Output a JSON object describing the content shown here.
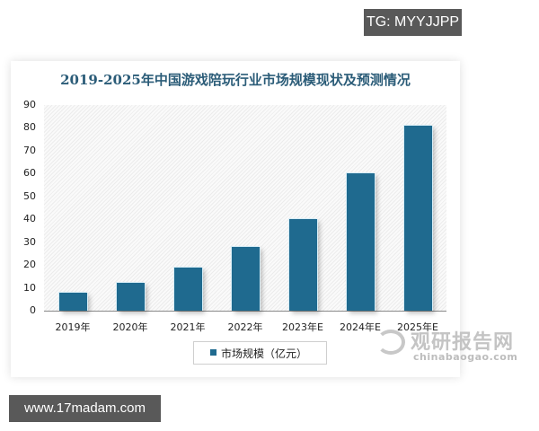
{
  "overlay": {
    "tg_badge": "TG: MYYJJPP",
    "url_badge": "www.17madam.com"
  },
  "chart": {
    "title": "2019-2025年中国游戏陪玩行业市场规模现状及预测情况",
    "legend": "市场规模（亿元）",
    "bar_color": "#1f6a8f",
    "y_ticks": [
      "90",
      "80",
      "70",
      "60",
      "50",
      "40",
      "30",
      "20",
      "10",
      "0"
    ],
    "x_ticks": [
      "2019年",
      "2020年",
      "2021年",
      "2022年",
      "2023年E",
      "2024年E",
      "2025年E"
    ]
  },
  "watermark": {
    "cn": "观研报告网",
    "en": "chinabaogao.com"
  },
  "chart_data": {
    "type": "bar",
    "title": "2019-2025年中国游戏陪玩行业市场规模现状及预测情况",
    "categories": [
      "2019年",
      "2020年",
      "2021年",
      "2022年",
      "2023年E",
      "2024年E",
      "2025年E"
    ],
    "series": [
      {
        "name": "市场规模（亿元）",
        "values": [
          8,
          12,
          19,
          28,
          40,
          60,
          81
        ]
      }
    ],
    "xlabel": "",
    "ylabel": "",
    "ylim": [
      0,
      90
    ],
    "yticks": [
      0,
      10,
      20,
      30,
      40,
      50,
      60,
      70,
      80,
      90
    ],
    "grid": false,
    "legend_position": "bottom-left",
    "colors": [
      "#1f6a8f"
    ]
  }
}
